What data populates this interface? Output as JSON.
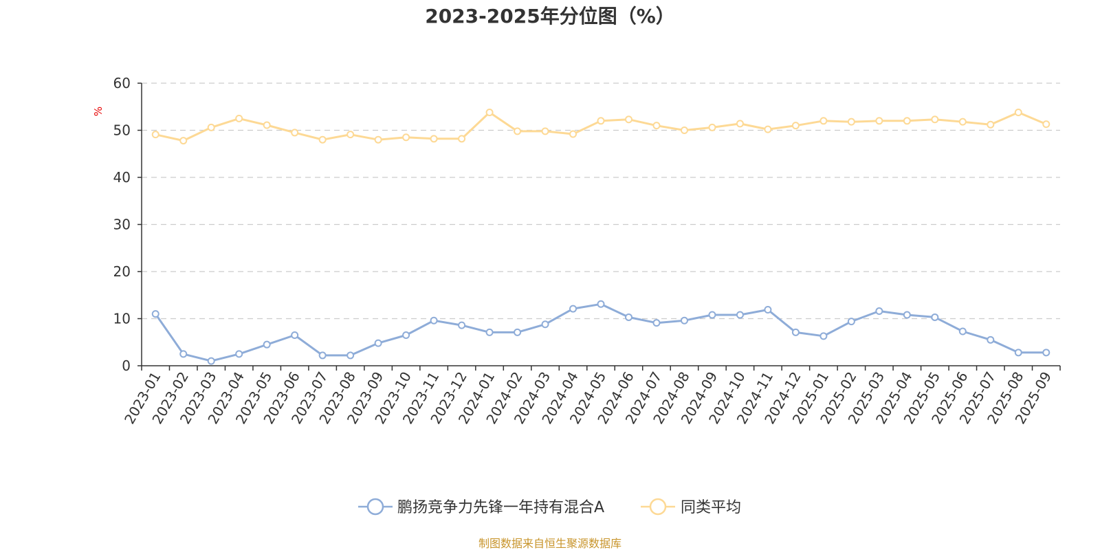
{
  "chart_data": {
    "type": "line",
    "title": "2023-2025年分位图（%）",
    "ylabel": "%",
    "ylim": [
      0,
      60
    ],
    "yticks": [
      0,
      10,
      20,
      30,
      40,
      50,
      60
    ],
    "grid": true,
    "legend_position": "bottom-center",
    "categories": [
      "2023-01",
      "2023-02",
      "2023-03",
      "2023-04",
      "2023-05",
      "2023-06",
      "2023-07",
      "2023-08",
      "2023-09",
      "2023-10",
      "2023-11",
      "2023-12",
      "2024-01",
      "2024-02",
      "2024-03",
      "2024-04",
      "2024-05",
      "2024-06",
      "2024-07",
      "2024-08",
      "2024-09",
      "2024-10",
      "2024-11",
      "2024-12",
      "2025-01",
      "2025-02",
      "2025-03",
      "2025-04",
      "2025-05",
      "2025-06",
      "2025-07",
      "2025-08",
      "2025-09"
    ],
    "series": [
      {
        "name": "鹏扬竞争力先锋一年持有混合A",
        "color": "#8eacd8",
        "values": [
          11.0,
          2.5,
          1.0,
          2.5,
          4.5,
          6.5,
          2.2,
          2.2,
          4.8,
          6.5,
          9.6,
          8.6,
          7.1,
          7.1,
          8.8,
          12.1,
          13.1,
          10.3,
          9.1,
          9.6,
          10.8,
          10.8,
          11.9,
          7.1,
          6.3,
          9.4,
          11.6,
          10.8,
          10.3,
          7.3,
          5.5,
          2.8,
          2.8
        ]
      },
      {
        "name": "同类平均",
        "color": "#fdd995",
        "values": [
          49.1,
          47.8,
          50.6,
          52.5,
          51.1,
          49.5,
          48.0,
          49.1,
          48.0,
          48.5,
          48.2,
          48.2,
          53.8,
          49.8,
          49.8,
          49.2,
          52.0,
          52.3,
          51.0,
          50.0,
          50.6,
          51.4,
          50.2,
          51.0,
          52.0,
          51.8,
          52.0,
          52.0,
          52.3,
          51.8,
          51.2,
          53.8,
          51.3
        ]
      }
    ],
    "source_note": "制图数据来自恒生聚源数据库",
    "colors": {
      "unit_label": "#e60000",
      "source_note": "#c8952c",
      "axis": "#333333",
      "grid": "#cccccc"
    }
  }
}
